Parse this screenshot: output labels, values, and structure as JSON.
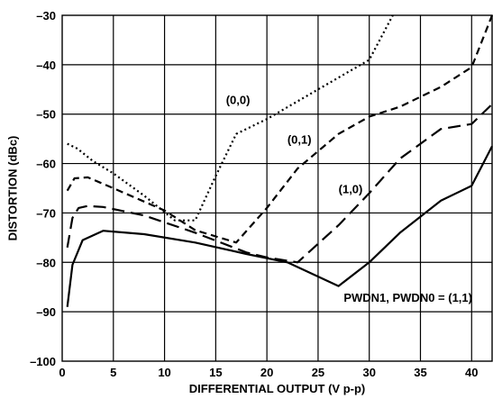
{
  "chart_data": {
    "type": "line",
    "xlabel": "DIFFERENTIAL OUTPUT (V p-p)",
    "ylabel": "DISTORTION (dBc)",
    "xlim": [
      0,
      42
    ],
    "ylim": [
      -100,
      -30
    ],
    "xticks": [
      0,
      5,
      10,
      15,
      20,
      25,
      30,
      35,
      40
    ],
    "yticks": [
      -100,
      -90,
      -80,
      -70,
      -60,
      -50,
      -40,
      -30
    ],
    "xtick_labels": [
      "0",
      "5",
      "10",
      "15",
      "20",
      "25",
      "30",
      "35",
      "40"
    ],
    "ytick_labels": [
      "–100",
      "–90",
      "–80",
      "–70",
      "–60",
      "–50",
      "–40",
      "–30"
    ],
    "grid": true,
    "series": [
      {
        "name": "PWDN1, PWDN0 = (1,1)",
        "style": "solid",
        "x": [
          0.5,
          1,
          2,
          4,
          8,
          13,
          18,
          22,
          27,
          30,
          33,
          37,
          40,
          42
        ],
        "y": [
          -89,
          -80.5,
          -75.5,
          -73.6,
          -74.3,
          -76,
          -78.3,
          -80,
          -84.8,
          -80,
          -74,
          -67.5,
          -64.5,
          -56.5
        ]
      },
      {
        "name": "(1,0)",
        "style": "long-dash",
        "x": [
          0.5,
          1,
          1.6,
          2.5,
          4,
          8,
          13,
          18,
          20,
          23,
          27,
          30,
          33,
          37,
          40,
          42
        ],
        "y": [
          -77,
          -71,
          -69,
          -68.6,
          -68.8,
          -70.5,
          -74,
          -78,
          -79,
          -80,
          -72.5,
          -66,
          -59,
          -53,
          -52,
          -48
        ]
      },
      {
        "name": "(0,1)",
        "style": "short-dash",
        "x": [
          0.5,
          1.2,
          2.5,
          5,
          10,
          13,
          17,
          20,
          23,
          27,
          30,
          33,
          37,
          40,
          42
        ],
        "y": [
          -65.5,
          -63,
          -62.8,
          -65,
          -69.5,
          -73.5,
          -76,
          -69,
          -61,
          -54,
          -50.5,
          -48.5,
          -44.5,
          -40.5,
          -30
        ]
      },
      {
        "name": "(0,0)",
        "style": "dotted",
        "x": [
          0.5,
          1.5,
          3,
          5,
          8,
          11,
          13,
          15,
          17,
          20,
          25,
          30,
          32.3
        ],
        "y": [
          -56,
          -57,
          -59.5,
          -62,
          -66.5,
          -71.5,
          -71.5,
          -62.5,
          -54,
          -51,
          -45,
          -39,
          -30
        ]
      }
    ],
    "annotations": [
      {
        "text": "(0,0)",
        "x": 16,
        "y": -48
      },
      {
        "text": "(0,1)",
        "x": 22,
        "y": -56
      },
      {
        "text": "(1,0)",
        "x": 27,
        "y": -66
      },
      {
        "text": "PWDN1, PWDN0 = (1,1)",
        "x": 27.5,
        "y": -88
      }
    ]
  }
}
